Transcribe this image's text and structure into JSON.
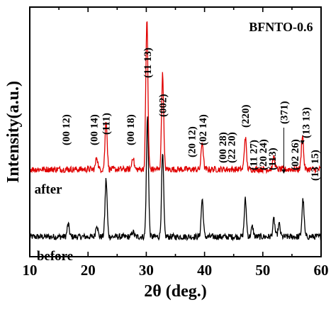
{
  "chart_data": {
    "type": "line",
    "title": "BFNTO-0.6",
    "xlabel": "2θ (deg.)",
    "ylabel": "Intensity(a.u.)",
    "xlim": [
      10,
      60
    ],
    "xticks": [
      10,
      20,
      30,
      40,
      50,
      60
    ],
    "xtick_labels": [
      "10",
      "20",
      "30",
      "40",
      "50",
      "60"
    ],
    "ylim": [
      0,
      1
    ],
    "y_ticks_shown": false,
    "grid": false,
    "series": [
      {
        "name": "before",
        "color": "#000000",
        "baseline": 0.08,
        "peaks": [
          {
            "x": 16.6,
            "y": 0.05
          },
          {
            "x": 21.5,
            "y": 0.05
          },
          {
            "x": 23.1,
            "y": 0.23
          },
          {
            "x": 27.7,
            "y": 0.02
          },
          {
            "x": 30.2,
            "y": 0.48
          },
          {
            "x": 32.8,
            "y": 0.33
          },
          {
            "x": 39.6,
            "y": 0.15
          },
          {
            "x": 47.0,
            "y": 0.15
          },
          {
            "x": 48.2,
            "y": 0.04
          },
          {
            "x": 51.9,
            "y": 0.07
          },
          {
            "x": 52.8,
            "y": 0.05
          },
          {
            "x": 56.9,
            "y": 0.15
          }
        ]
      },
      {
        "name": "after",
        "color": "#e00000",
        "baseline": 0.35,
        "peaks": [
          {
            "x": 21.5,
            "y": 0.05
          },
          {
            "x": 23.1,
            "y": 0.2
          },
          {
            "x": 27.7,
            "y": 0.05
          },
          {
            "x": 30.1,
            "y": 0.6
          },
          {
            "x": 32.8,
            "y": 0.38
          },
          {
            "x": 39.6,
            "y": 0.11
          },
          {
            "x": 47.0,
            "y": 0.13
          },
          {
            "x": 51.9,
            "y": 0.05
          },
          {
            "x": 56.8,
            "y": 0.14
          }
        ]
      }
    ],
    "annotations": [
      {
        "text": "(00 12)",
        "x": 16.2
      },
      {
        "text": "(00 14)",
        "x": 21.0
      },
      {
        "text": "(111)",
        "x": 23.1
      },
      {
        "text": "(00 18)",
        "x": 27.3
      },
      {
        "text": "(11 13)",
        "x": 30.2
      },
      {
        "text": "(002)",
        "x": 32.8
      },
      {
        "text": "(20 12)",
        "x": 37.8
      },
      {
        "text": "(02 14)",
        "x": 39.7
      },
      {
        "text": "(00 28)",
        "x": 43.1
      },
      {
        "text": "(22 20)",
        "x": 44.6
      },
      {
        "text": "(220)",
        "x": 47.0
      },
      {
        "text": "(11 27)",
        "x": 48.4
      },
      {
        "text": "(20 24)",
        "x": 50.0
      },
      {
        "text": "(113)",
        "x": 51.6
      },
      {
        "text": "(371)",
        "x": 53.6
      },
      {
        "text": "(02 26)",
        "x": 55.5
      },
      {
        "text": "(13 13)",
        "x": 57.4
      },
      {
        "text": "(13 15)",
        "x": 58.9
      }
    ]
  }
}
